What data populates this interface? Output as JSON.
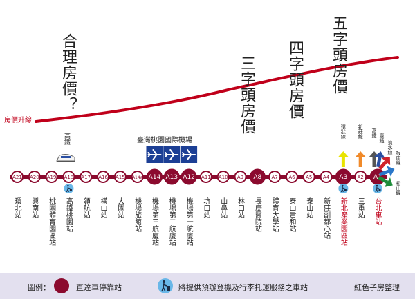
{
  "annotations": {
    "reasonable": "合理房價？",
    "three_digit": "三字頭房價",
    "four_digit": "四字頭房價",
    "five_digit": "五字頭房價",
    "price_line": "房價升線"
  },
  "airport": {
    "title": "臺灣桃園國際機場"
  },
  "hsr": {
    "label": "高鐵"
  },
  "connections": [
    {
      "label": "環狀線",
      "color": "#e9e400"
    },
    {
      "label": "新莊線",
      "color": "#f08a2a"
    },
    {
      "label": "高鐵",
      "color": "#555555"
    },
    {
      "label": "臺鐵",
      "color": "#2a4fa3"
    },
    {
      "label": "淡水線",
      "color": "#d0222a"
    },
    {
      "label": "板南線",
      "color": "#2a77c9"
    },
    {
      "label": "松山線",
      "color": "#1e8c3a"
    }
  ],
  "stations": [
    {
      "code": "A21",
      "name": "環北站",
      "type": "local",
      "name_red": false,
      "service": false
    },
    {
      "code": "A20",
      "name": "興南站",
      "type": "local",
      "name_red": false,
      "service": false
    },
    {
      "code": "A19",
      "name": "桃園體育園區站",
      "type": "local",
      "name_red": false,
      "service": false
    },
    {
      "code": "A18",
      "name": "高鐵桃園站",
      "type": "local",
      "name_red": false,
      "service": true
    },
    {
      "code": "A17",
      "name": "領航站",
      "type": "local",
      "name_red": false,
      "service": false
    },
    {
      "code": "A16",
      "name": "橫山站",
      "type": "local",
      "name_red": false,
      "service": false
    },
    {
      "code": "A15",
      "name": "大園站",
      "type": "local",
      "name_red": false,
      "service": false
    },
    {
      "code": "A14a",
      "name": "機場旅館站",
      "type": "local",
      "name_red": false,
      "service": false
    },
    {
      "code": "A14",
      "name": "機場第三航廈站",
      "type": "express",
      "name_red": false,
      "service": false
    },
    {
      "code": "A13",
      "name": "機場第二航廈站",
      "type": "express",
      "name_red": false,
      "service": false
    },
    {
      "code": "A12",
      "name": "機場第一航廈站",
      "type": "express",
      "name_red": false,
      "service": false
    },
    {
      "code": "A11",
      "name": "坑口站",
      "type": "local",
      "name_red": false,
      "service": false
    },
    {
      "code": "A10",
      "name": "山鼻站",
      "type": "local",
      "name_red": false,
      "service": false
    },
    {
      "code": "A9",
      "name": "林口站",
      "type": "local",
      "name_red": false,
      "service": false
    },
    {
      "code": "A8",
      "name": "長庚醫院站",
      "type": "express",
      "name_red": false,
      "service": false
    },
    {
      "code": "A7",
      "name": "體育大學站",
      "type": "local",
      "name_red": false,
      "service": false
    },
    {
      "code": "A6",
      "name": "泰山貴和站",
      "type": "local",
      "name_red": false,
      "service": false
    },
    {
      "code": "A5",
      "name": "泰山站",
      "type": "local",
      "name_red": false,
      "service": false
    },
    {
      "code": "A4",
      "name": "新莊副都心站",
      "type": "local",
      "name_red": false,
      "service": false
    },
    {
      "code": "A3",
      "name": "新北產業園區站",
      "type": "express",
      "name_red": true,
      "service": true
    },
    {
      "code": "A2",
      "name": "三重站",
      "type": "local",
      "name_red": false,
      "service": false
    },
    {
      "code": "A1",
      "name": "台北車站",
      "type": "express",
      "name_red": true,
      "service": true
    }
  ],
  "legend": {
    "prefix": "圖例：",
    "express_label": "直達車停靠站",
    "service_label": "將提供預辦登機及行李托運服務之車站",
    "credit": "紅色子房整理"
  },
  "colors": {
    "line": "#8b0a2e",
    "express": "#8b0a2e",
    "price_curve": "#c0001a",
    "legend_bg": "#e3e0ef",
    "airport_box": "#1c3f95"
  }
}
